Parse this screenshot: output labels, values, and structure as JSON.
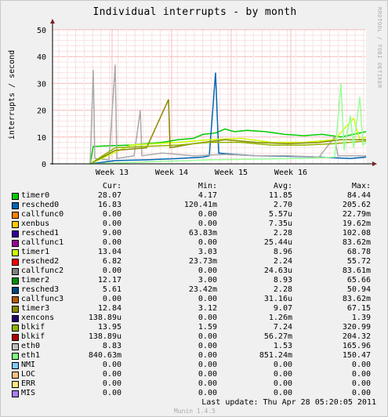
{
  "chart_data": {
    "type": "line",
    "title": "Individual interrupts - by month",
    "ylabel": "interrupts / second",
    "xlabel": "",
    "ylim": [
      0,
      50
    ],
    "yticks": [
      0,
      10,
      20,
      30,
      40,
      50
    ],
    "xlim": [
      0,
      100
    ],
    "xticks": [
      {
        "label": "Week 13",
        "x": 19
      },
      {
        "label": "Week 14",
        "x": 38
      },
      {
        "label": "Week 15",
        "x": 57
      },
      {
        "label": "Week 16",
        "x": 76
      }
    ],
    "grid": true,
    "series": [
      {
        "name": "timer0",
        "color": "#00cc00",
        "points": [
          [
            12,
            0
          ],
          [
            13,
            6.5
          ],
          [
            20,
            6.8
          ],
          [
            25,
            7
          ],
          [
            30,
            7.5
          ],
          [
            35,
            8
          ],
          [
            40,
            9
          ],
          [
            45,
            9.5
          ],
          [
            48,
            11
          ],
          [
            52,
            11.5
          ],
          [
            55,
            13
          ],
          [
            58,
            12
          ],
          [
            62,
            12.5
          ],
          [
            68,
            12
          ],
          [
            74,
            11
          ],
          [
            80,
            10.5
          ],
          [
            86,
            11
          ],
          [
            92,
            10
          ],
          [
            96,
            11
          ],
          [
            100,
            12
          ]
        ]
      },
      {
        "name": "resched0",
        "color": "#0066b3",
        "points": [
          [
            12,
            0
          ],
          [
            20,
            1.2
          ],
          [
            30,
            1.5
          ],
          [
            40,
            2
          ],
          [
            48,
            2.5
          ],
          [
            50,
            3
          ],
          [
            52,
            34
          ],
          [
            53,
            4
          ],
          [
            58,
            3.5
          ],
          [
            65,
            3
          ],
          [
            75,
            2.8
          ],
          [
            85,
            2.5
          ],
          [
            95,
            2
          ],
          [
            100,
            2.5
          ]
        ]
      },
      {
        "name": "eth0",
        "color": "#aaaaaa",
        "points": [
          [
            12,
            0
          ],
          [
            13,
            35
          ],
          [
            13.5,
            2
          ],
          [
            18,
            1.5
          ],
          [
            20,
            37
          ],
          [
            20.5,
            2
          ],
          [
            26,
            3
          ],
          [
            28,
            20
          ],
          [
            28.5,
            3
          ],
          [
            35,
            4
          ],
          [
            45,
            3
          ],
          [
            55,
            3.5
          ],
          [
            65,
            3
          ],
          [
            75,
            3
          ],
          [
            85,
            2.5
          ],
          [
            90,
            10
          ],
          [
            91,
            3
          ],
          [
            100,
            3
          ]
        ]
      },
      {
        "name": "timer1",
        "color": "#ccff00",
        "points": [
          [
            12,
            0
          ],
          [
            25,
            7
          ],
          [
            40,
            8
          ],
          [
            50,
            9
          ],
          [
            60,
            9.5
          ],
          [
            70,
            8
          ],
          [
            80,
            8
          ],
          [
            90,
            9
          ],
          [
            96,
            17
          ],
          [
            98,
            9
          ],
          [
            100,
            10
          ]
        ]
      },
      {
        "name": "timer3",
        "color": "#888800",
        "points": [
          [
            12,
            0
          ],
          [
            20,
            5
          ],
          [
            30,
            6
          ],
          [
            37,
            24
          ],
          [
            37.5,
            6
          ],
          [
            45,
            7.5
          ],
          [
            55,
            9
          ],
          [
            65,
            8
          ],
          [
            75,
            7.5
          ],
          [
            85,
            8
          ],
          [
            92,
            9
          ],
          [
            100,
            9
          ]
        ]
      },
      {
        "name": "blkif",
        "color": "#8fb300",
        "points": [
          [
            12,
            0
          ],
          [
            20,
            6
          ],
          [
            30,
            6.5
          ],
          [
            40,
            7
          ],
          [
            50,
            8
          ],
          [
            60,
            8
          ],
          [
            70,
            7
          ],
          [
            80,
            7
          ],
          [
            90,
            7.5
          ],
          [
            100,
            8.5
          ]
        ]
      },
      {
        "name": "eth1",
        "color": "#99ff99",
        "points": [
          [
            12,
            0
          ],
          [
            50,
            1.5
          ],
          [
            80,
            2
          ],
          [
            90,
            2.5
          ],
          [
            92,
            30
          ],
          [
            93,
            5
          ],
          [
            95,
            18
          ],
          [
            96,
            6
          ],
          [
            98,
            25
          ],
          [
            99,
            7
          ],
          [
            100,
            8
          ]
        ]
      }
    ]
  },
  "side_label": "RRDTOOL / TOBI OETIKER",
  "legend": {
    "headers": [
      "Cur:",
      "Min:",
      "Avg:",
      "Max:"
    ],
    "rows": [
      {
        "name": "timer0",
        "color": "#00cc00",
        "cur": "28.07",
        "min": "4.17",
        "avg": "11.85",
        "max": "84.44"
      },
      {
        "name": "resched0",
        "color": "#0066b3",
        "cur": "16.83",
        "min": "120.41m",
        "avg": "2.70",
        "max": "205.62"
      },
      {
        "name": "callfunc0",
        "color": "#ff8000",
        "cur": "0.00",
        "min": "0.00",
        "avg": "5.57u",
        "max": "22.79m"
      },
      {
        "name": "xenbus",
        "color": "#ffcc00",
        "cur": "0.00",
        "min": "0.00",
        "avg": "7.35u",
        "max": "19.62m"
      },
      {
        "name": "resched1",
        "color": "#330099",
        "cur": "9.00",
        "min": "63.83m",
        "avg": "2.28",
        "max": "102.08"
      },
      {
        "name": "callfunc1",
        "color": "#990099",
        "cur": "0.00",
        "min": "0.00",
        "avg": "25.44u",
        "max": "83.62m"
      },
      {
        "name": "timer1",
        "color": "#ccff00",
        "cur": "13.04",
        "min": "3.03",
        "avg": "8.96",
        "max": "68.78"
      },
      {
        "name": "resched2",
        "color": "#ff0000",
        "cur": "6.82",
        "min": "23.73m",
        "avg": "2.24",
        "max": "55.72"
      },
      {
        "name": "callfunc2",
        "color": "#808080",
        "cur": "0.00",
        "min": "0.00",
        "avg": "24.63u",
        "max": "83.61m"
      },
      {
        "name": "timer2",
        "color": "#008f00",
        "cur": "12.17",
        "min": "3.00",
        "avg": "8.93",
        "max": "65.66"
      },
      {
        "name": "resched3",
        "color": "#00487d",
        "cur": "5.61",
        "min": "23.42m",
        "avg": "2.28",
        "max": "50.94"
      },
      {
        "name": "callfunc3",
        "color": "#b35a00",
        "cur": "0.00",
        "min": "0.00",
        "avg": "31.16u",
        "max": "83.62m"
      },
      {
        "name": "timer3",
        "color": "#888800",
        "cur": "12.84",
        "min": "3.12",
        "avg": "9.07",
        "max": "67.15"
      },
      {
        "name": "xencons",
        "color": "#24006b",
        "cur": "138.89u",
        "min": "0.00",
        "avg": "1.26m",
        "max": "1.39"
      },
      {
        "name": "blkif",
        "color": "#8fb300",
        "cur": "13.95",
        "min": "1.59",
        "avg": "7.24",
        "max": "320.99"
      },
      {
        "name": "blkif",
        "color": "#b30000",
        "cur": "138.89u",
        "min": "0.00",
        "avg": "56.27m",
        "max": "204.32"
      },
      {
        "name": "eth0",
        "color": "#bebebe",
        "cur": "8.83",
        "min": "0.00",
        "avg": "1.53",
        "max": "165.96"
      },
      {
        "name": "eth1",
        "color": "#80ff80",
        "cur": "840.63m",
        "min": "0.00",
        "avg": "851.24m",
        "max": "150.47"
      },
      {
        "name": "NMI",
        "color": "#80c9ff",
        "cur": "0.00",
        "min": "0.00",
        "avg": "0.00",
        "max": "0.00"
      },
      {
        "name": "LOC",
        "color": "#ffc080",
        "cur": "0.00",
        "min": "0.00",
        "avg": "0.00",
        "max": "0.00"
      },
      {
        "name": "ERR",
        "color": "#ffe680",
        "cur": "0.00",
        "min": "0.00",
        "avg": "0.00",
        "max": "0.00"
      },
      {
        "name": "MIS",
        "color": "#aa80ff",
        "cur": "0.00",
        "min": "0.00",
        "avg": "0.00",
        "max": "0.00"
      }
    ]
  },
  "last_update": "Last update: Thu Apr 28 05:20:05 2011",
  "footer": "Munin 1.4.5"
}
